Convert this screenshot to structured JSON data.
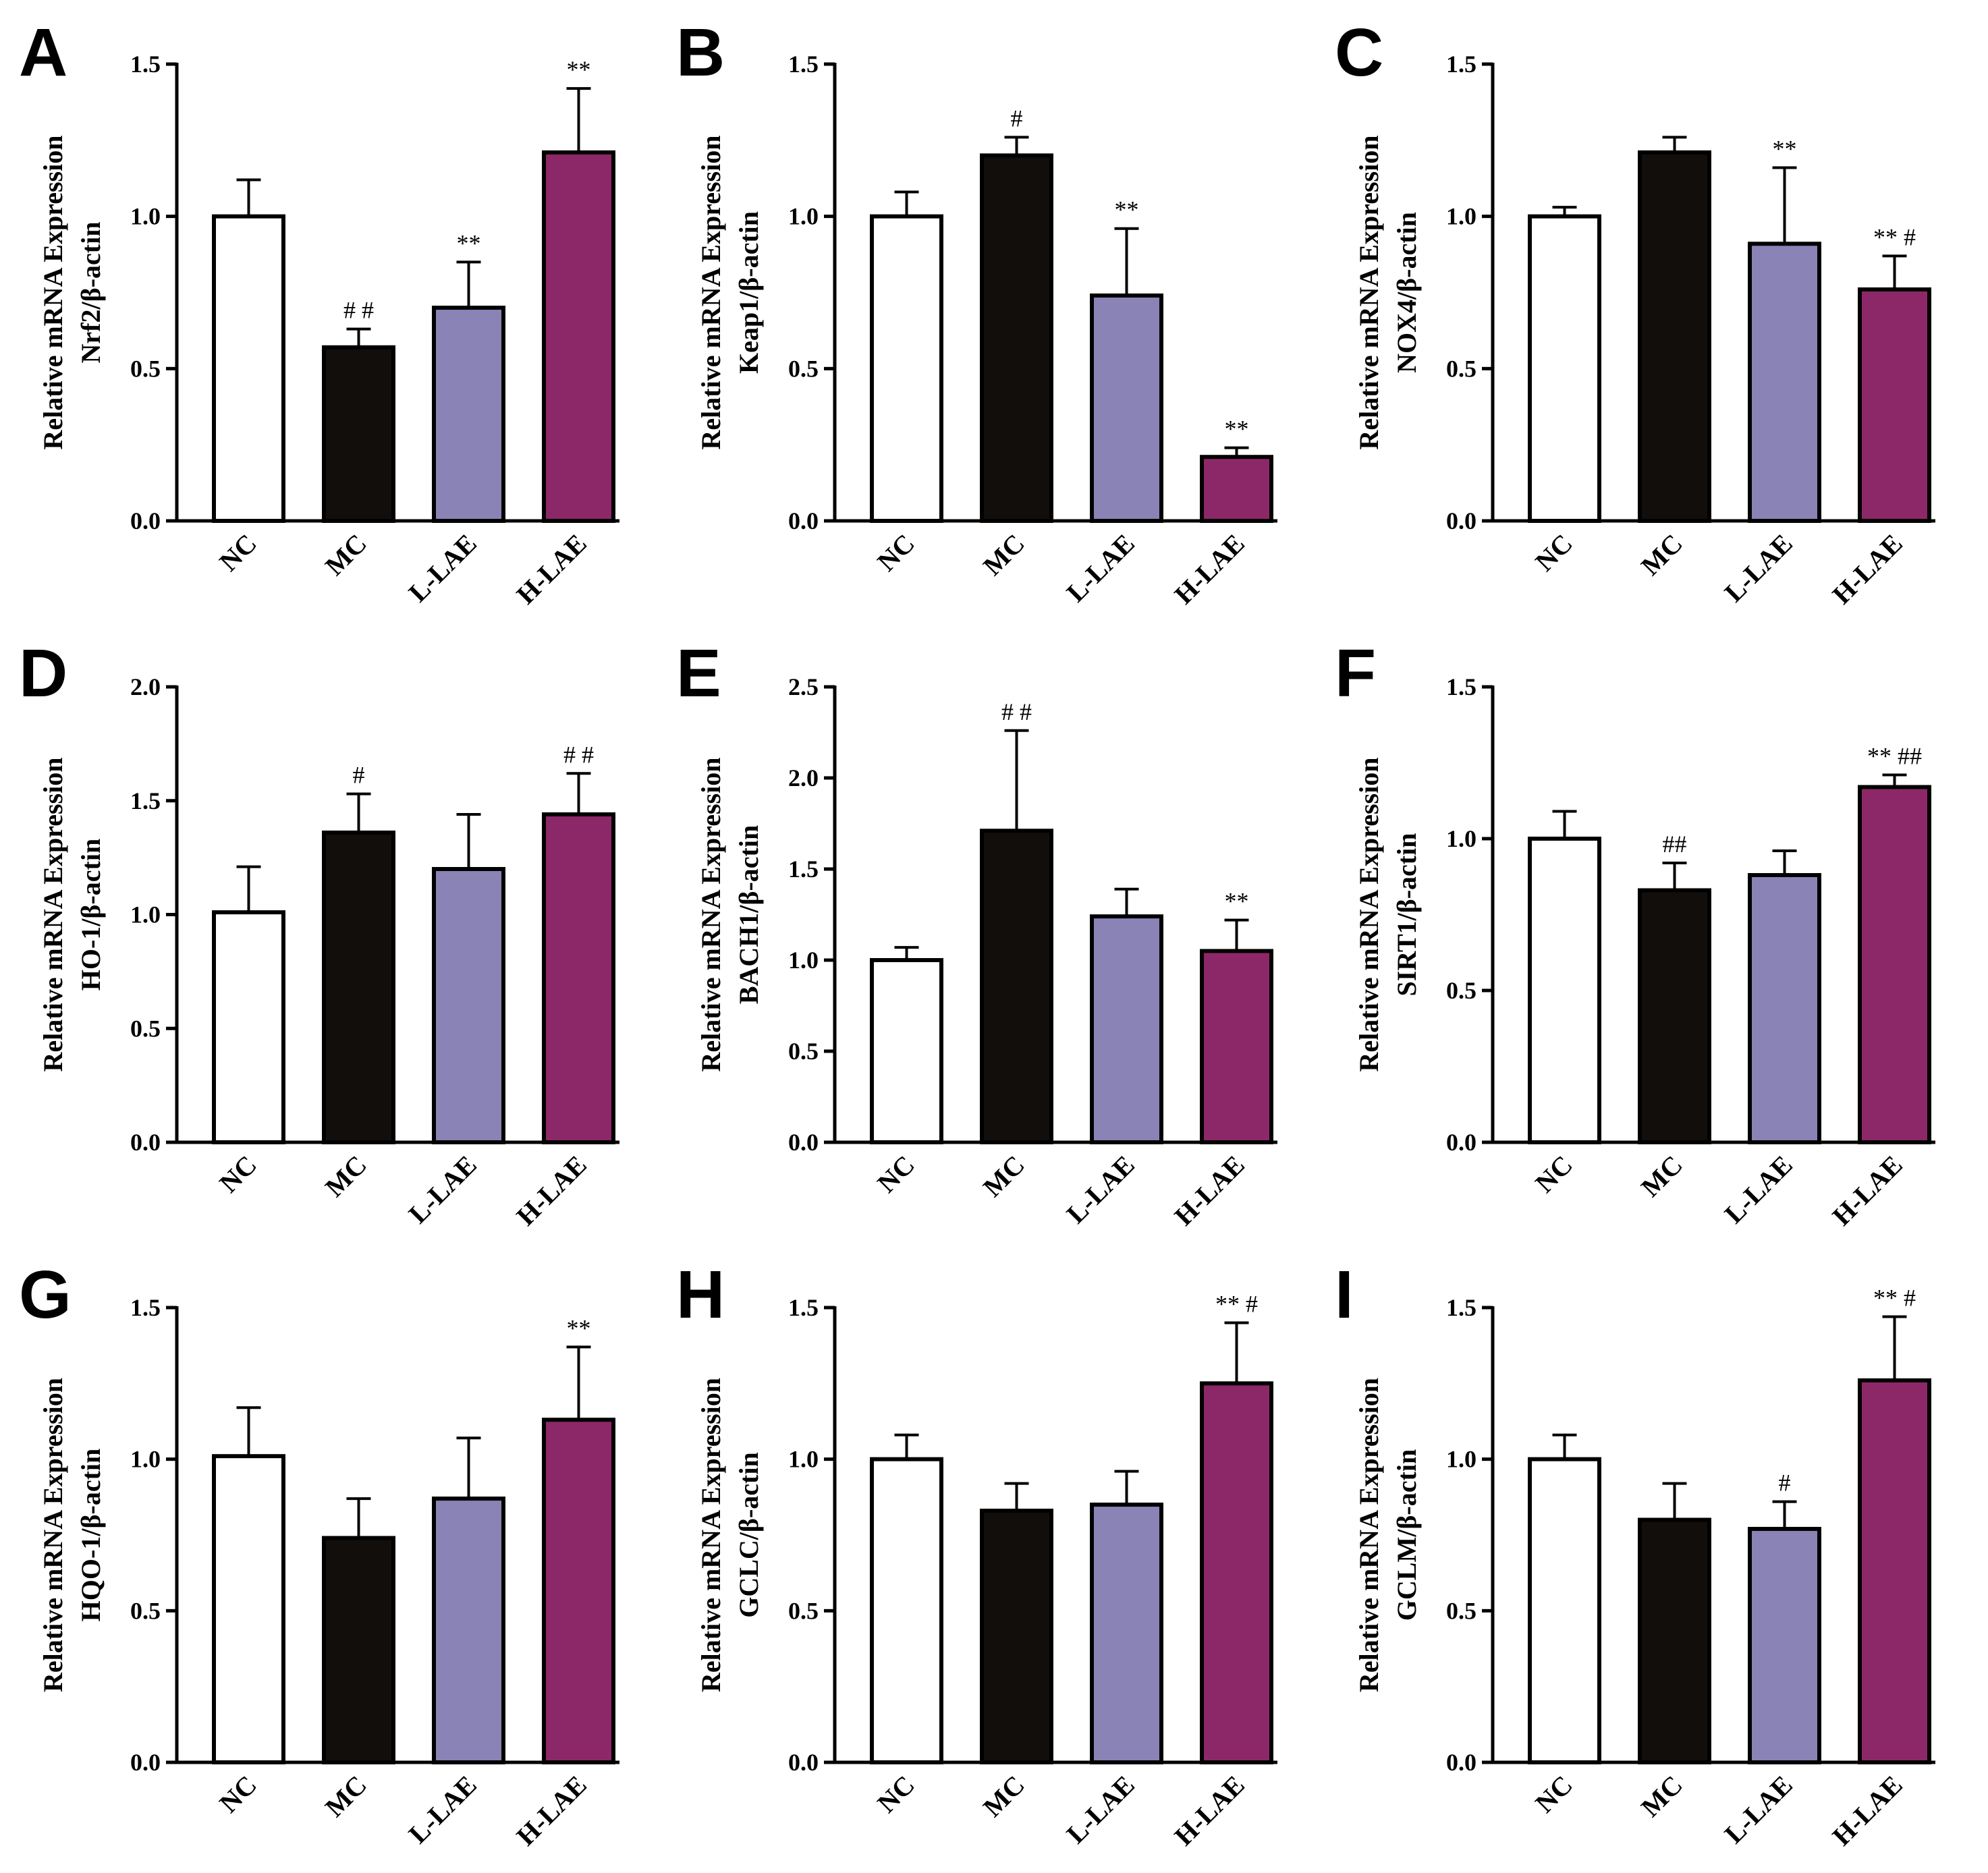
{
  "colors": {
    "NC": "#ffffff",
    "MC": "#120e0b",
    "L-LAE": "#8983b6",
    "H-LAE": "#8c2867",
    "axis": "#000000"
  },
  "chart_data": [
    {
      "panel": "A",
      "type": "bar",
      "categories": [
        "NC",
        "MC",
        "L-LAE",
        "H-LAE"
      ],
      "values": [
        1.0,
        0.57,
        0.7,
        1.21
      ],
      "errors": [
        0.12,
        0.06,
        0.15,
        0.21
      ],
      "significance": [
        "",
        "# #",
        "**",
        "**"
      ],
      "ylabel_line1": "Relative mRNA Expression",
      "ylabel_line2": "Nrf2/β-actin",
      "ylim": [
        0,
        1.5
      ],
      "yticks": [
        "0.0",
        "0.5",
        "1.0",
        "1.5"
      ]
    },
    {
      "panel": "B",
      "type": "bar",
      "categories": [
        "NC",
        "MC",
        "L-LAE",
        "H-LAE"
      ],
      "values": [
        1.0,
        1.2,
        0.74,
        0.21
      ],
      "errors": [
        0.08,
        0.06,
        0.22,
        0.03
      ],
      "significance": [
        "",
        "#",
        "**",
        "**"
      ],
      "ylabel_line1": "Relative mRNA Expression",
      "ylabel_line2": "Keap1/β-actin",
      "ylim": [
        0,
        1.5
      ],
      "yticks": [
        "0.0",
        "0.5",
        "1.0",
        "1.5"
      ]
    },
    {
      "panel": "C",
      "type": "bar",
      "categories": [
        "NC",
        "MC",
        "L-LAE",
        "H-LAE"
      ],
      "values": [
        1.0,
        1.21,
        0.91,
        0.76
      ],
      "errors": [
        0.03,
        0.05,
        0.25,
        0.11
      ],
      "significance": [
        "",
        "",
        "**",
        "** #"
      ],
      "ylabel_line1": "Relative mRNA Expression",
      "ylabel_line2": "NOX4/β-actin",
      "ylim": [
        0,
        1.5
      ],
      "yticks": [
        "0.0",
        "0.5",
        "1.0",
        "1.5"
      ]
    },
    {
      "panel": "D",
      "type": "bar",
      "categories": [
        "NC",
        "MC",
        "L-LAE",
        "H-LAE"
      ],
      "values": [
        1.01,
        1.36,
        1.2,
        1.44
      ],
      "errors": [
        0.2,
        0.17,
        0.24,
        0.18
      ],
      "significance": [
        "",
        "#",
        "",
        "# #"
      ],
      "ylabel_line1": "Relative mRNA Expression",
      "ylabel_line2": "HO-1/β-actin",
      "ylim": [
        0,
        2.0
      ],
      "yticks": [
        "0.0",
        "0.5",
        "1.0",
        "1.5",
        "2.0"
      ]
    },
    {
      "panel": "E",
      "type": "bar",
      "categories": [
        "NC",
        "MC",
        "L-LAE",
        "H-LAE"
      ],
      "values": [
        1.0,
        1.71,
        1.24,
        1.05
      ],
      "errors": [
        0.07,
        0.55,
        0.15,
        0.17
      ],
      "significance": [
        "",
        "# #",
        "",
        "**"
      ],
      "ylabel_line1": "Relative mRNA Expression",
      "ylabel_line2": "BACH1/β-actin",
      "ylim": [
        0,
        2.5
      ],
      "yticks": [
        "0.0",
        "0.5",
        "1.0",
        "1.5",
        "2.0",
        "2.5"
      ]
    },
    {
      "panel": "F",
      "type": "bar",
      "categories": [
        "NC",
        "MC",
        "L-LAE",
        "H-LAE"
      ],
      "values": [
        1.0,
        0.83,
        0.88,
        1.17
      ],
      "errors": [
        0.09,
        0.09,
        0.08,
        0.04
      ],
      "significance": [
        "",
        "##",
        "",
        "** ##"
      ],
      "ylabel_line1": "Relative mRNA Expression",
      "ylabel_line2": "SIRT1/β-actin",
      "ylim": [
        0,
        1.5
      ],
      "yticks": [
        "0.0",
        "0.5",
        "1.0",
        "1.5"
      ]
    },
    {
      "panel": "G",
      "type": "bar",
      "categories": [
        "NC",
        "MC",
        "L-LAE",
        "H-LAE"
      ],
      "values": [
        1.01,
        0.74,
        0.87,
        1.13
      ],
      "errors": [
        0.16,
        0.13,
        0.2,
        0.24
      ],
      "significance": [
        "",
        "",
        "",
        "**"
      ],
      "ylabel_line1": "Relative mRNA Expression",
      "ylabel_line2": "HQO-1/β-actin",
      "ylim": [
        0,
        1.5
      ],
      "yticks": [
        "0.0",
        "0.5",
        "1.0",
        "1.5"
      ]
    },
    {
      "panel": "H",
      "type": "bar",
      "categories": [
        "NC",
        "MC",
        "L-LAE",
        "H-LAE"
      ],
      "values": [
        1.0,
        0.83,
        0.85,
        1.25
      ],
      "errors": [
        0.08,
        0.09,
        0.11,
        0.2
      ],
      "significance": [
        "",
        "",
        "",
        "** #"
      ],
      "ylabel_line1": "Relative mRNA Expression",
      "ylabel_line2": "GCLC/β-actin",
      "ylim": [
        0,
        1.5
      ],
      "yticks": [
        "0.0",
        "0.5",
        "1.0",
        "1.5"
      ]
    },
    {
      "panel": "I",
      "type": "bar",
      "categories": [
        "NC",
        "MC",
        "L-LAE",
        "H-LAE"
      ],
      "values": [
        1.0,
        0.8,
        0.77,
        1.26
      ],
      "errors": [
        0.08,
        0.12,
        0.09,
        0.21
      ],
      "significance": [
        "",
        "",
        "#",
        "** #"
      ],
      "ylabel_line1": "Relative mRNA Expression",
      "ylabel_line2": "GCLM/β-actin",
      "ylim": [
        0,
        1.5
      ],
      "yticks": [
        "0.0",
        "0.5",
        "1.0",
        "1.5"
      ]
    }
  ]
}
